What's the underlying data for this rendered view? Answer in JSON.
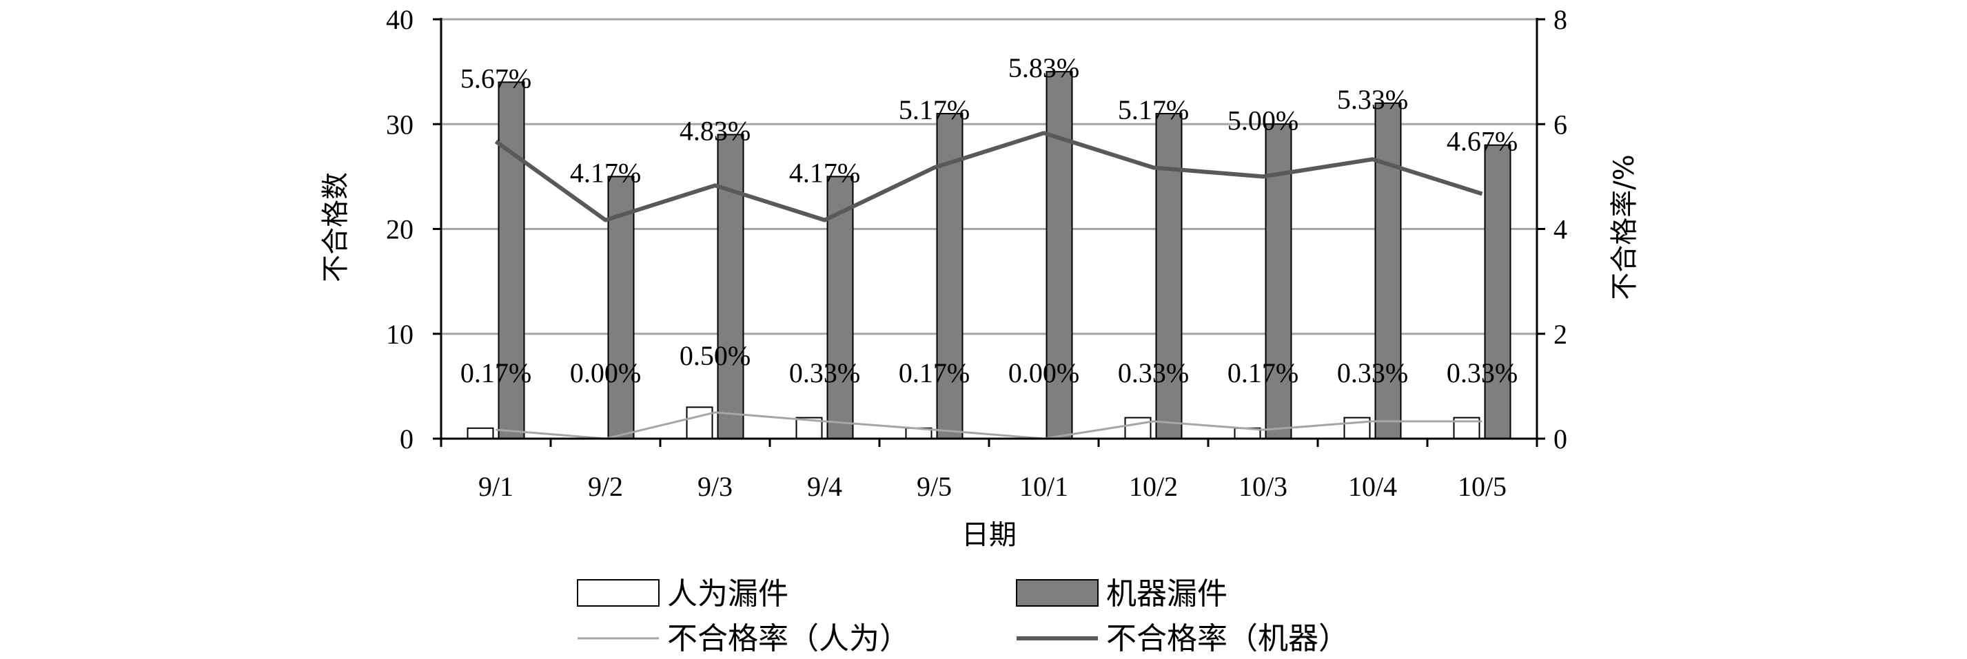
{
  "chart_data": {
    "type": "bar",
    "categories": [
      "9/1",
      "9/2",
      "9/3",
      "9/4",
      "9/5",
      "10/1",
      "10/2",
      "10/3",
      "10/4",
      "10/5"
    ],
    "series": [
      {
        "name": "人为漏件",
        "kind": "bar",
        "axis": "left",
        "fill": "#ffffff",
        "values": [
          1,
          0,
          3,
          2,
          1,
          0,
          2,
          1,
          2,
          2
        ]
      },
      {
        "name": "机器漏件",
        "kind": "bar",
        "axis": "left",
        "fill": "#7f7f7f",
        "values": [
          34,
          25,
          29,
          25,
          31,
          35,
          31,
          30,
          32,
          28
        ]
      },
      {
        "name": "不合格率（人为）",
        "kind": "line",
        "axis": "right",
        "color": "#a6a6a6",
        "values": [
          0.17,
          0.0,
          0.5,
          0.33,
          0.17,
          0.0,
          0.33,
          0.17,
          0.33,
          0.33
        ],
        "labels": [
          "0.17%",
          "0.00%",
          "0.50%",
          "0.33%",
          "0.17%",
          "0.00%",
          "0.33%",
          "0.17%",
          "0.33%",
          "0.33%"
        ]
      },
      {
        "name": "不合格率（机器）",
        "kind": "line",
        "axis": "right",
        "color": "#595959",
        "values": [
          5.67,
          4.17,
          4.83,
          4.17,
          5.17,
          5.83,
          5.17,
          5.0,
          5.33,
          4.67
        ],
        "labels": [
          "5.67%",
          "4.17%",
          "4.83%",
          "4.17%",
          "5.17%",
          "5.83%",
          "5.17%",
          "5.00%",
          "5.33%",
          "4.67%"
        ]
      }
    ],
    "xlabel": "日期",
    "ylabel": "不合格数",
    "y2label": "不合格率/%",
    "ylim": [
      0,
      40
    ],
    "yticks": [
      "0",
      "10",
      "20",
      "30",
      "40"
    ],
    "y2lim": [
      0,
      8
    ],
    "y2ticks": [
      "0",
      "2",
      "4",
      "6",
      "8"
    ],
    "grid": true,
    "legend_position": "bottom",
    "colors": {
      "grid": "#a6a6a6",
      "axis": "#000000",
      "bar_stroke": "#000000"
    }
  }
}
